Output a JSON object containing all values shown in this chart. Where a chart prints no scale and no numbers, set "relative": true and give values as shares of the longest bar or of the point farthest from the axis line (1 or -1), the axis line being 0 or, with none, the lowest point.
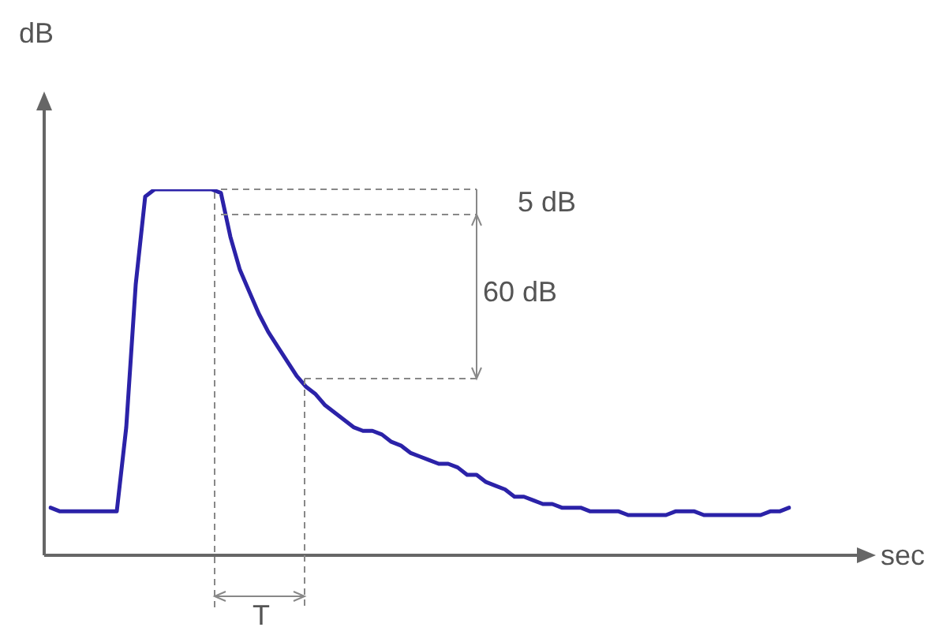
{
  "chart_data": {
    "type": "line",
    "xlabel": "sec",
    "ylabel": "dB",
    "relative": true,
    "marker": "none",
    "color": "#2b22a8",
    "categories": [
      null,
      null,
      null,
      null,
      null,
      null,
      null,
      null,
      null,
      null,
      null,
      null,
      null,
      null,
      null,
      null,
      null,
      null,
      null,
      null,
      null,
      null,
      null,
      null,
      null,
      null,
      null,
      null,
      null,
      null,
      null,
      null,
      null,
      null,
      null,
      null,
      null,
      null,
      null,
      null,
      null,
      null,
      null,
      null,
      null,
      null,
      null,
      null,
      null,
      null,
      null,
      null,
      null,
      null,
      null,
      null,
      null,
      null,
      null,
      null,
      null,
      null,
      null,
      null,
      null,
      null,
      null,
      null,
      null,
      null,
      null,
      null,
      null,
      null,
      null,
      null,
      null,
      null,
      null
    ],
    "values": [
      0.13,
      0.12,
      0.12,
      0.12,
      0.12,
      0.12,
      0.12,
      0.12,
      0.35,
      0.74,
      0.98,
      1,
      1,
      1,
      1,
      1,
      1,
      1,
      0.99,
      0.87,
      0.78,
      0.72,
      0.66,
      0.61,
      0.57,
      0.53,
      0.49,
      0.46,
      0.44,
      0.41,
      0.39,
      0.37,
      0.35,
      0.34,
      0.34,
      0.33,
      0.31,
      0.3,
      0.28,
      0.27,
      0.26,
      0.25,
      0.25,
      0.24,
      0.22,
      0.22,
      0.2,
      0.19,
      0.18,
      0.16,
      0.16,
      0.15,
      0.14,
      0.14,
      0.13,
      0.13,
      0.13,
      0.12,
      0.12,
      0.12,
      0.12,
      0.11,
      0.11,
      0.11,
      0.11,
      0.11,
      0.12,
      0.12,
      0.12,
      0.11,
      0.11,
      0.11,
      0.11,
      0.11,
      0.11,
      0.11,
      0.12,
      0.12,
      0.13
    ],
    "annotations": [
      "5 dB",
      "60 dB",
      "T"
    ]
  }
}
